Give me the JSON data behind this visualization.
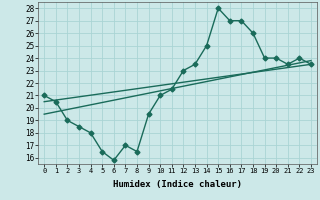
{
  "xlabel": "Humidex (Indice chaleur)",
  "ylabel": "",
  "bg_color": "#cce8e8",
  "grid_color": "#aad4d4",
  "line_color": "#1a6b5a",
  "xlim": [
    -0.5,
    23.5
  ],
  "ylim": [
    15.5,
    28.5
  ],
  "xticks": [
    0,
    1,
    2,
    3,
    4,
    5,
    6,
    7,
    8,
    9,
    10,
    11,
    12,
    13,
    14,
    15,
    16,
    17,
    18,
    19,
    20,
    21,
    22,
    23
  ],
  "yticks": [
    16,
    17,
    18,
    19,
    20,
    21,
    22,
    23,
    24,
    25,
    26,
    27,
    28
  ],
  "line1_x": [
    0,
    1,
    2,
    3,
    4,
    5,
    6,
    7,
    8,
    9,
    10,
    11,
    12,
    13,
    14,
    15,
    16,
    17,
    18,
    19,
    20,
    21,
    22,
    23
  ],
  "line1_y": [
    21.0,
    20.5,
    19.0,
    18.5,
    18.0,
    16.5,
    15.8,
    17.0,
    16.5,
    19.5,
    21.0,
    21.5,
    23.0,
    23.5,
    25.0,
    28.0,
    27.0,
    27.0,
    26.0,
    24.0,
    24.0,
    23.5,
    24.0,
    23.5
  ],
  "line2_x": [
    0,
    23
  ],
  "line2_y": [
    20.5,
    23.5
  ],
  "line3_x": [
    0,
    23
  ],
  "line3_y": [
    19.5,
    23.8
  ],
  "marker": "D",
  "markersize": 2.5,
  "linewidth": 1.0
}
